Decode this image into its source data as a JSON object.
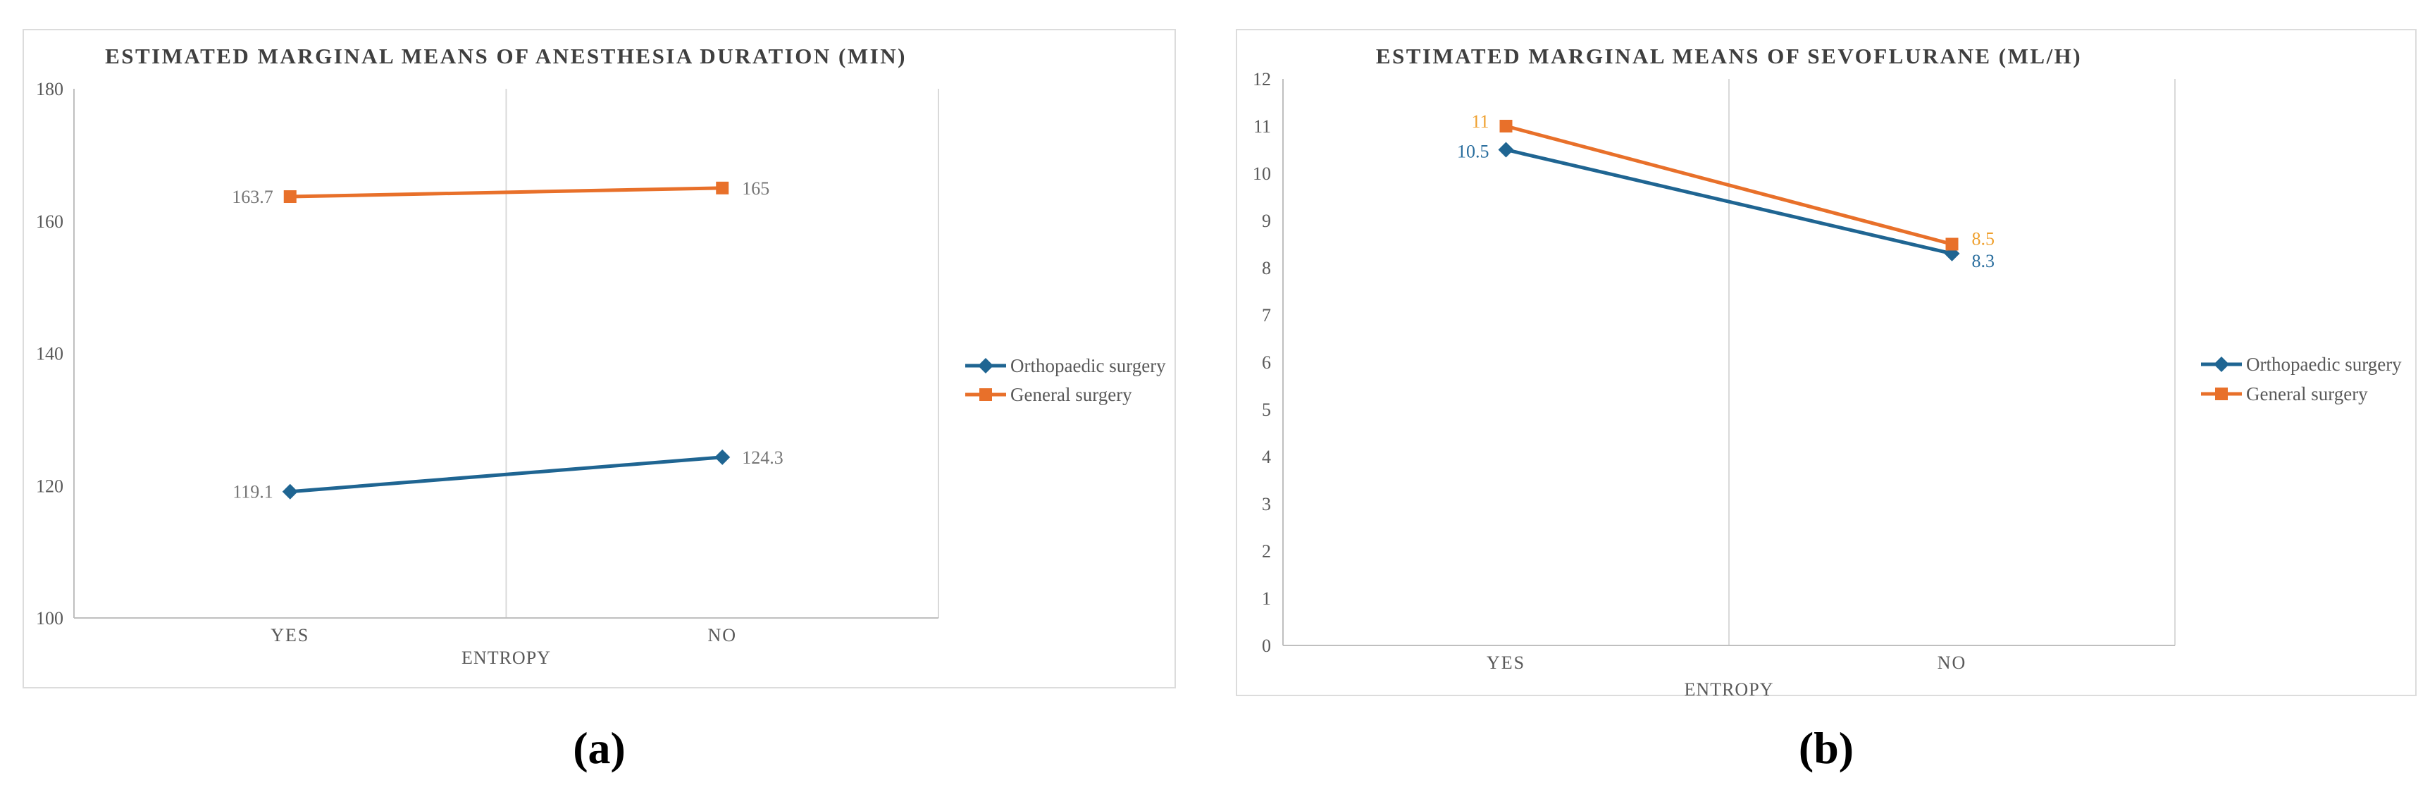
{
  "style": {
    "background": "#ffffff",
    "grid_color": "#d9d9d9",
    "axis_color": "#bfbfbf",
    "tick_color": "#595959",
    "title_color": "#3f3f3f",
    "legend_text_color": "#595959",
    "panel_border_color": "#dcdcdc"
  },
  "captions": {
    "a": "(a)",
    "b": "(b)"
  },
  "chart_data": [
    {
      "id": "a",
      "type": "line",
      "title": "ESTIMATED MARGINAL MEANS OF ANESTHESIA DURATION (MIN)",
      "xlabel": "ENTROPY",
      "categories": [
        "YES",
        "NO"
      ],
      "ylim": [
        100,
        180
      ],
      "yticks": [
        100,
        120,
        140,
        160,
        180
      ],
      "grid": "vertical-only",
      "legend_position": "right",
      "series": [
        {
          "name": "Orthopaedic surgery",
          "marker": "diamond",
          "color": "#1f6592",
          "values": [
            119.1,
            124.3
          ],
          "labels": [
            "119.1",
            "124.3"
          ],
          "label_side": [
            "left",
            "right"
          ],
          "label_dy": [
            0,
            0
          ],
          "label_color": "#767676"
        },
        {
          "name": "General surgery",
          "marker": "square",
          "color": "#e8702a",
          "values": [
            163.7,
            165
          ],
          "labels": [
            "163.7",
            "165"
          ],
          "label_side": [
            "left",
            "right"
          ],
          "label_dy": [
            0,
            0
          ],
          "label_color": "#767676"
        }
      ]
    },
    {
      "id": "b",
      "type": "line",
      "title": "ESTIMATED MARGINAL MEANS OF SEVOFLURANE (ML/H)",
      "xlabel": "ENTROPY",
      "categories": [
        "YES",
        "NO"
      ],
      "ylim": [
        0,
        12
      ],
      "yticks": [
        0,
        1,
        2,
        3,
        4,
        5,
        6,
        7,
        8,
        9,
        10,
        11,
        12
      ],
      "grid": "vertical-only",
      "legend_position": "right",
      "series": [
        {
          "name": "Orthopaedic surgery",
          "marker": "diamond",
          "color": "#1f6592",
          "values": [
            10.5,
            8.3
          ],
          "labels": [
            "10.5",
            "8.3"
          ],
          "label_side": [
            "left",
            "right"
          ],
          "label_dy": [
            2,
            10
          ],
          "label_color": "#2a6e9e"
        },
        {
          "name": "General surgery",
          "marker": "square",
          "color": "#e8702a",
          "values": [
            11,
            8.5
          ],
          "labels": [
            "11",
            "8.5"
          ],
          "label_side": [
            "left",
            "right"
          ],
          "label_dy": [
            -7,
            -8
          ],
          "label_color": "#efa02e"
        }
      ]
    }
  ]
}
